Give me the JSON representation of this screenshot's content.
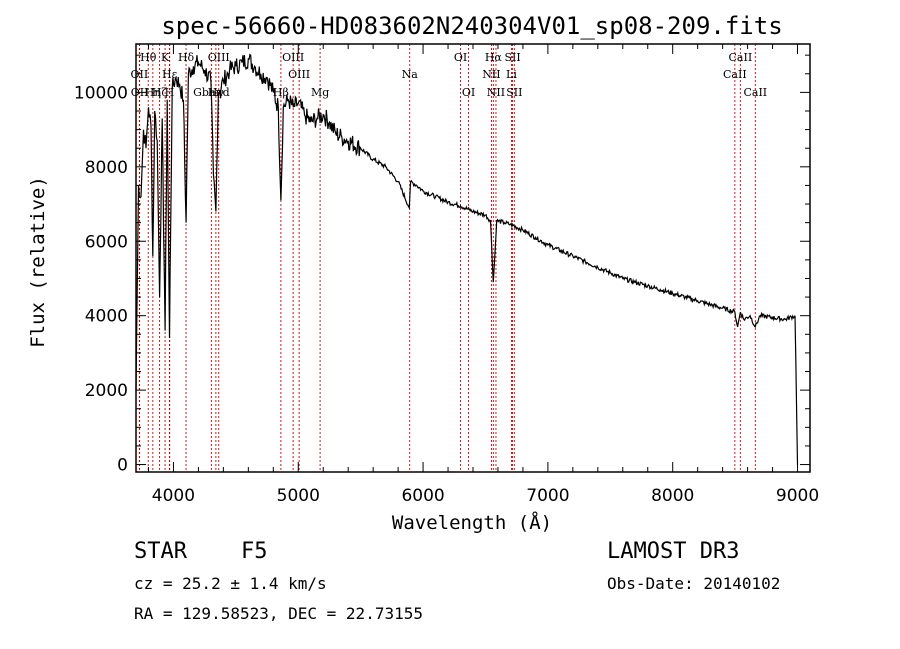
{
  "chart_data": {
    "type": "line",
    "title": "spec-56660-HD083602N240304V01_sp08-209.fits",
    "xlabel": "Wavelength (Å)",
    "ylabel": "Flux (relative)",
    "xlim": [
      3700,
      9100
    ],
    "ylim": [
      -200,
      11300
    ],
    "x_ticks": [
      4000,
      5000,
      6000,
      7000,
      8000,
      9000
    ],
    "y_ticks": [
      0,
      2000,
      4000,
      6000,
      8000,
      10000
    ],
    "series": [
      {
        "name": "flux",
        "x": [
          3700,
          3720,
          3740,
          3760,
          3780,
          3800,
          3820,
          3835,
          3850,
          3870,
          3889,
          3910,
          3933,
          3950,
          3968,
          3990,
          4020,
          4050,
          4080,
          4101,
          4120,
          4160,
          4200,
          4250,
          4300,
          4320,
          4340,
          4360,
          4400,
          4450,
          4500,
          4550,
          4600,
          4650,
          4700,
          4750,
          4800,
          4840,
          4861,
          4880,
          4920,
          4960,
          5000,
          5050,
          5100,
          5150,
          5200,
          5250,
          5300,
          5350,
          5400,
          5500,
          5600,
          5700,
          5800,
          5890,
          5900,
          5950,
          6000,
          6100,
          6200,
          6300,
          6400,
          6500,
          6540,
          6563,
          6590,
          6650,
          6700,
          6800,
          6900,
          7000,
          7100,
          7200,
          7300,
          7400,
          7500,
          7600,
          7700,
          7800,
          7900,
          8000,
          8100,
          8200,
          8300,
          8400,
          8498,
          8520,
          8542,
          8570,
          8620,
          8662,
          8700,
          8800,
          8900,
          8980,
          9000
        ],
        "y": [
          2000,
          7500,
          7200,
          9000,
          8500,
          9600,
          9100,
          5600,
          9500,
          8700,
          4500,
          9300,
          3600,
          9800,
          3400,
          10100,
          10400,
          10200,
          9800,
          6500,
          10500,
          10700,
          10800,
          10600,
          10300,
          7800,
          6800,
          10000,
          10300,
          10600,
          10700,
          10800,
          10900,
          10700,
          10500,
          10400,
          10000,
          9600,
          7100,
          9600,
          9800,
          9600,
          9700,
          9400,
          9200,
          9300,
          9400,
          9200,
          8900,
          8800,
          8700,
          8500,
          8200,
          8000,
          7600,
          6900,
          7600,
          7500,
          7350,
          7200,
          7050,
          6950,
          6800,
          6700,
          6550,
          4900,
          6550,
          6500,
          6450,
          6300,
          6100,
          5900,
          5750,
          5600,
          5450,
          5300,
          5150,
          5000,
          4900,
          4800,
          4700,
          4600,
          4500,
          4400,
          4300,
          4200,
          4100,
          3700,
          4100,
          3900,
          4000,
          3700,
          4000,
          3950,
          3900,
          4000,
          0
        ]
      }
    ],
    "line_markers": [
      {
        "label": "Hθ",
        "x": 3798,
        "row": 1
      },
      {
        "label": "OII",
        "x": 3727,
        "row": 2
      },
      {
        "label": "OII",
        "x": 3729,
        "row": 3
      },
      {
        "label": "Hε",
        "x": 3970,
        "row": 2
      },
      {
        "label": "Hη",
        "x": 3835,
        "row": 3
      },
      {
        "label": "Hζ",
        "x": 3889,
        "row": 3
      },
      {
        "label": "K",
        "x": 3933,
        "row": 1
      },
      {
        "label": "H",
        "x": 3968,
        "row": 3
      },
      {
        "label": "Hδ",
        "x": 4101,
        "row": 1
      },
      {
        "label": "OIII",
        "x": 4363,
        "row": 1
      },
      {
        "label": "Gband",
        "x": 4304,
        "row": 3
      },
      {
        "label": "Hγ",
        "x": 4340,
        "row": 3
      },
      {
        "label": "OIII",
        "x": 4959,
        "row": 1
      },
      {
        "label": "OIII",
        "x": 5007,
        "row": 2
      },
      {
        "label": "Hβ",
        "x": 4861,
        "row": 3
      },
      {
        "label": "Mg",
        "x": 5175,
        "row": 3
      },
      {
        "label": "Na",
        "x": 5893,
        "row": 2
      },
      {
        "label": "OI",
        "x": 6300,
        "row": 1
      },
      {
        "label": "OI",
        "x": 6364,
        "row": 3
      },
      {
        "label": "Hα",
        "x": 6563,
        "row": 1
      },
      {
        "label": "SII",
        "x": 6717,
        "row": 1
      },
      {
        "label": "NII",
        "x": 6548,
        "row": 2
      },
      {
        "label": "NII",
        "x": 6584,
        "row": 3
      },
      {
        "label": "Li",
        "x": 6708,
        "row": 2
      },
      {
        "label": "SII",
        "x": 6731,
        "row": 3
      },
      {
        "label": "CaII",
        "x": 8498,
        "row": 2
      },
      {
        "label": "CaII",
        "x": 8542,
        "row": 1
      },
      {
        "label": "CaII",
        "x": 8662,
        "row": 3
      }
    ],
    "colors": {
      "spectrum": "#000000",
      "markers": "#cc0000",
      "axes": "#000000"
    }
  },
  "info": {
    "class_label": "STAR",
    "subclass_label": "F5",
    "survey": "LAMOST DR3",
    "cz": "cz = 25.2 ± 1.4 km/s",
    "obs_date": "Obs-Date: 20140102",
    "radec": "RA = 129.58523, DEC =  22.73155"
  }
}
